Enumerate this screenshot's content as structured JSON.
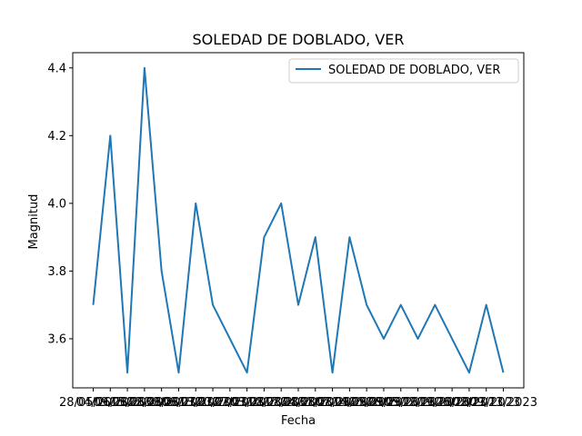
{
  "chart_data": {
    "type": "line",
    "title": "SOLEDAD DE DOBLADO, VER",
    "xlabel": "Fecha",
    "ylabel": "Magnitud",
    "x": [
      "28/05/2023",
      "04/06/2023",
      "09/06/2023",
      "15/06/2023",
      "22/06/2023",
      "30/06/2023",
      "06/07/2023",
      "13/07/2023",
      "20/07/2023",
      "27/07/2023",
      "03/08/2023",
      "10/08/2023",
      "17/08/2023",
      "24/08/2023",
      "31/08/2023",
      "07/09/2023",
      "14/09/2023",
      "21/09/2023",
      "28/09/2023",
      "05/10/2023",
      "12/10/2023",
      "19/10/2023",
      "26/10/2023",
      "02/11/2023",
      "09/11/2023"
    ],
    "series": [
      {
        "name": "SOLEDAD DE DOBLADO, VER",
        "color": "#1f77b4",
        "values": [
          3.7,
          4.2,
          3.5,
          4.4,
          3.8,
          3.5,
          4.0,
          3.7,
          3.6,
          3.5,
          3.9,
          4.0,
          3.7,
          3.9,
          3.5,
          3.9,
          3.7,
          3.6,
          3.7,
          3.6,
          3.7,
          3.6,
          3.5,
          3.7,
          3.5
        ]
      }
    ],
    "ylim": [
      3.455,
      4.445
    ],
    "yticks": [
      "3.6",
      "3.8",
      "4.0",
      "4.2",
      "4.4"
    ],
    "grid": false,
    "legend": "top-right"
  }
}
